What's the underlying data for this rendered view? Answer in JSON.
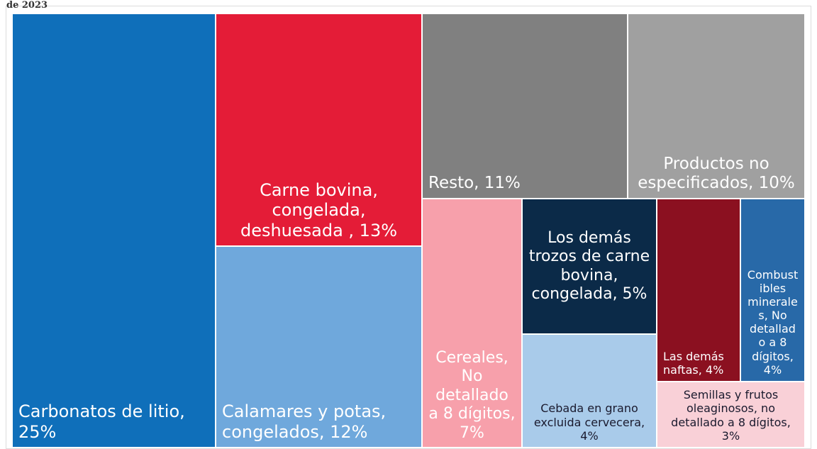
{
  "chart_data": {
    "type": "treemap",
    "subtitle": "de 2023",
    "labels": [
      "Carbonatos de litio, 25%",
      "Carne bovina, congelada, deshuesada , 13%",
      "Calamares y potas, congelados, 12%",
      "Resto, 11%",
      "Productos no especificados, 10%",
      "Cereales, No detallado a 8 dígitos, 7%",
      "Los demás trozos de carne bovina, congelada, 5%",
      "Cebada en grano excluida cervecera, 4%",
      "Las demás naftas, 4%",
      "Combustibles minerales, No detallado a 8 dígitos, 4%",
      "Semillas y frutos oleaginosos, no detallado a 8 dígitos, 3%"
    ],
    "values": [
      25,
      13,
      12,
      11,
      10,
      7,
      5,
      4,
      4,
      4,
      3
    ],
    "colors": [
      "#0f6fba",
      "#e41c37",
      "#6fa8dc",
      "#808080",
      "#a0a0a0",
      "#f7a0ab",
      "#0b2a48",
      "#a9cbea",
      "#8b1020",
      "#2869a8",
      "#f9d0d7"
    ]
  }
}
